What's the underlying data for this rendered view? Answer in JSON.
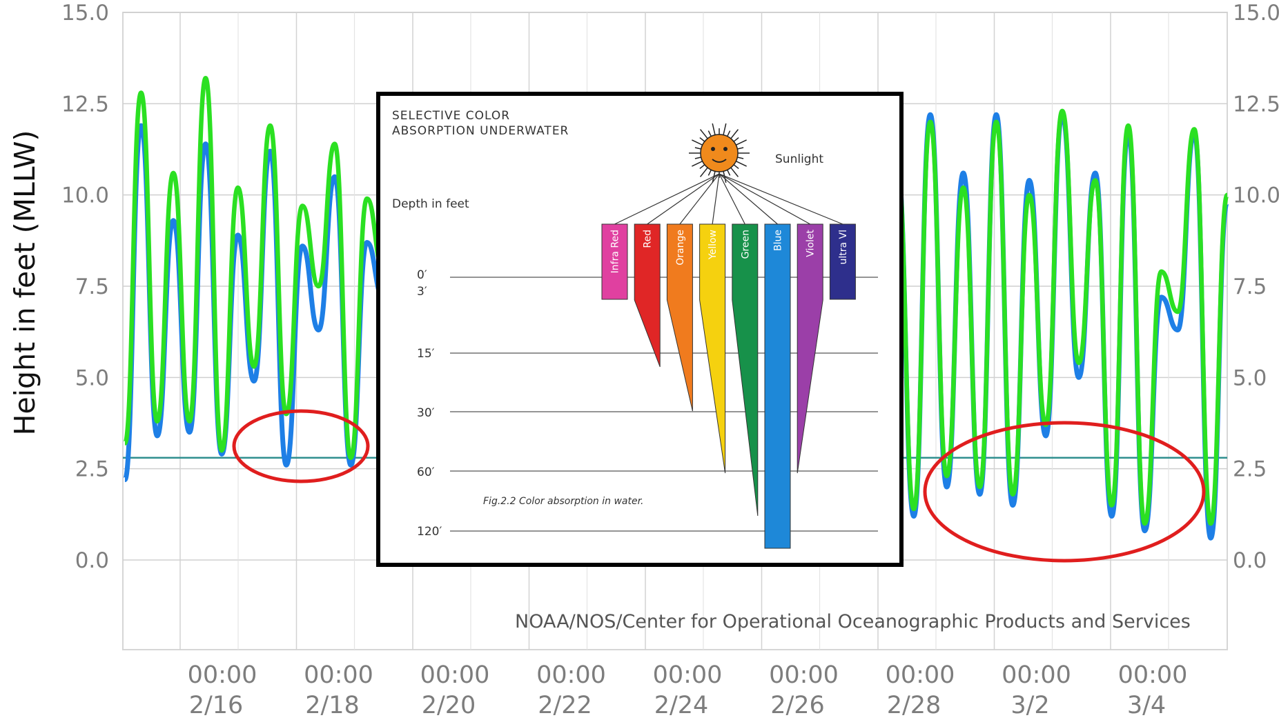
{
  "chart_data": {
    "type": "line",
    "ylabel": "Height in feet (MLLW)",
    "ylim": [
      -2.5,
      15.0
    ],
    "yticks": [
      "15.0",
      "12.5",
      "10.0",
      "7.5",
      "5.0",
      "2.5",
      "0.0"
    ],
    "xticks": [
      {
        "time": "00:00",
        "date": "2/16"
      },
      {
        "time": "00:00",
        "date": "2/18"
      },
      {
        "time": "00:00",
        "date": "2/20"
      },
      {
        "time": "00:00",
        "date": "2/22"
      },
      {
        "time": "00:00",
        "date": "2/24"
      },
      {
        "time": "00:00",
        "date": "2/26"
      },
      {
        "time": "00:00",
        "date": "2/28"
      },
      {
        "time": "00:00",
        "date": "3/2"
      },
      {
        "time": "00:00",
        "date": "3/4"
      }
    ],
    "grid": true,
    "reference_line": 2.8,
    "credit": "NOAA/NOS/Center for Operational Oceanographic Products and Services",
    "series": [
      {
        "color": "#1e7fe6",
        "extrema_left": [
          2.2,
          11.9,
          3.4,
          9.3,
          3.5,
          11.4,
          2.9,
          8.9,
          4.9,
          11.2,
          2.6,
          8.6,
          6.3,
          10.5,
          2.6,
          8.7,
          7.2
        ],
        "extrema_right": [
          10.8,
          1.2,
          12.2,
          2.0,
          10.6,
          1.8,
          12.2,
          1.5,
          10.4,
          3.4,
          12.2,
          5.0,
          10.6,
          1.2,
          11.7,
          0.8,
          7.2,
          6.3,
          11.7,
          0.6,
          9.8
        ]
      },
      {
        "color": "#2be022",
        "extrema_left": [
          3.2,
          12.8,
          3.8,
          10.6,
          3.8,
          13.2,
          3.0,
          10.2,
          5.3,
          11.9,
          4.0,
          9.7,
          7.5,
          11.4,
          2.8,
          9.9,
          8.0
        ],
        "extrema_right": [
          10.8,
          1.4,
          12.0,
          2.3,
          10.2,
          2.0,
          12.0,
          1.8,
          10.0,
          3.7,
          12.3,
          5.4,
          10.4,
          1.5,
          11.9,
          1.0,
          7.9,
          6.8,
          11.8,
          1.0,
          10.0
        ]
      }
    ]
  },
  "inset": {
    "title_line1": "SELECTIVE COLOR",
    "title_line2": "ABSORPTION UNDERWATER",
    "sunlight_label": "Sunlight",
    "depth_label": "Depth in feet",
    "depth_marks": [
      "0′",
      "3′",
      "15′",
      "30′",
      "60′",
      "120′"
    ],
    "caption": "Fig.2.2 Color absorption in water.",
    "bands": [
      {
        "label": "Infra Red",
        "color": "#e040a0",
        "depth_ft": 3
      },
      {
        "label": "Red",
        "color": "#e02626",
        "depth_ft": 15
      },
      {
        "label": "Orange",
        "color": "#f07b1e",
        "depth_ft": 30
      },
      {
        "label": "Yellow",
        "color": "#f5d10f",
        "depth_ft": 60
      },
      {
        "label": "Green",
        "color": "#17914a",
        "depth_ft": 120
      },
      {
        "label": "Blue",
        "color": "#1e88d8",
        "depth_ft": 120
      },
      {
        "label": "Violet",
        "color": "#9b3fa8",
        "depth_ft": 60
      },
      {
        "label": "ultra Vl",
        "color": "#2e2f8c",
        "depth_ft": 3
      }
    ]
  }
}
